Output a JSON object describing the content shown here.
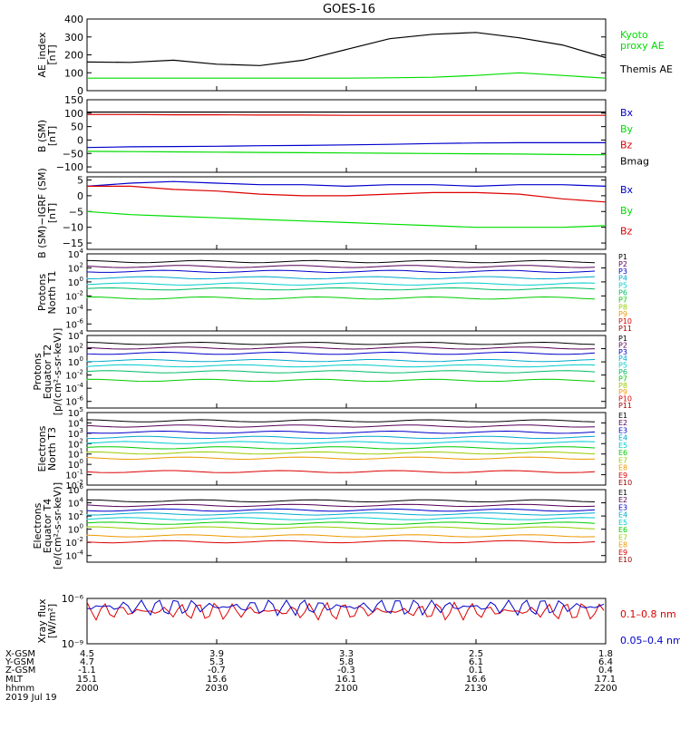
{
  "title": "GOES-16",
  "colors": {
    "axes": "#000000",
    "black": "#000000",
    "green": "#00dd00",
    "blue": "#0000cc",
    "red": "#dd0000",
    "darkred": "#990000"
  },
  "chart_data": [
    {
      "type": "line",
      "panel": "ae",
      "ylabel": [
        "AE_index",
        "[nT]"
      ],
      "ylim": [
        0,
        400
      ],
      "yticks": [
        0,
        100,
        200,
        300,
        400
      ],
      "ytick_labels": [
        "0",
        "100",
        "200",
        "300",
        "400"
      ],
      "x": [
        0,
        10,
        20,
        30,
        40,
        50,
        60,
        70,
        80,
        90,
        100,
        110,
        120
      ],
      "series": [
        {
          "name": "Kyoto proxy AE",
          "color": "#00dd00",
          "values": [
            70,
            70,
            70,
            70,
            70,
            70,
            70,
            72,
            75,
            85,
            100,
            85,
            70
          ]
        },
        {
          "name": "Themis AE",
          "color": "#000000",
          "values": [
            160,
            158,
            170,
            148,
            140,
            170,
            230,
            290,
            315,
            325,
            295,
            255,
            185
          ]
        }
      ],
      "legend": [
        "Kyoto",
        "proxy AE",
        "Themis AE"
      ]
    },
    {
      "type": "line",
      "panel": "bsm",
      "ylabel": [
        "B (SM)",
        "[nT]"
      ],
      "ylim": [
        -120,
        150
      ],
      "yticks": [
        -100,
        -50,
        0,
        50,
        100,
        150
      ],
      "ytick_labels": [
        "−100",
        "−50",
        "0",
        "50",
        "100",
        "150"
      ],
      "x": [
        0,
        10,
        20,
        30,
        40,
        50,
        60,
        70,
        80,
        90,
        100,
        110,
        120
      ],
      "series": [
        {
          "name": "Bx",
          "color": "#0000cc",
          "values": [
            -28,
            -25,
            -24,
            -23,
            -21,
            -20,
            -18,
            -16,
            -13,
            -11,
            -10,
            -10,
            -10
          ]
        },
        {
          "name": "By",
          "color": "#00dd00",
          "values": [
            -42,
            -43,
            -44,
            -45,
            -46,
            -47,
            -48,
            -49,
            -50,
            -51,
            -52,
            -54,
            -55
          ]
        },
        {
          "name": "Bz",
          "color": "#dd0000",
          "values": [
            95,
            95,
            94,
            94,
            93,
            93,
            92,
            92,
            92,
            92,
            92,
            92,
            92
          ]
        },
        {
          "name": "Bmag",
          "color": "#000000",
          "values": [
            104,
            104,
            104,
            104,
            104,
            104,
            104,
            104,
            104,
            104,
            104,
            104,
            104
          ]
        }
      ],
      "legend": [
        "Bx",
        "By",
        "Bz",
        "Bmag"
      ]
    },
    {
      "type": "line",
      "panel": "bigrf",
      "ylabel": [
        "B (SM)−IGRF (SM)",
        "[nT]"
      ],
      "ylim": [
        -17,
        6
      ],
      "yticks": [
        -15,
        -10,
        -5,
        0,
        5
      ],
      "ytick_labels": [
        "−15",
        "−10",
        "−5",
        "0",
        "5"
      ],
      "x": [
        0,
        10,
        20,
        30,
        40,
        50,
        60,
        70,
        80,
        90,
        100,
        110,
        120
      ],
      "series": [
        {
          "name": "Bx",
          "color": "#0000cc",
          "values": [
            3,
            4,
            4.5,
            4,
            3.5,
            3.5,
            3,
            3.5,
            3.5,
            3,
            3.5,
            3.5,
            3
          ]
        },
        {
          "name": "By",
          "color": "#00dd00",
          "values": [
            -5,
            -6,
            -6.5,
            -7,
            -7.5,
            -8,
            -8.5,
            -9,
            -9.5,
            -10,
            -10,
            -10,
            -9.5
          ]
        },
        {
          "name": "Bz",
          "color": "#dd0000",
          "values": [
            3,
            3,
            2,
            1.5,
            0.5,
            0,
            0,
            0.5,
            1,
            1,
            0.5,
            -1,
            -2
          ]
        }
      ],
      "legend": [
        "Bx",
        "By",
        "Bz"
      ]
    },
    {
      "type": "line",
      "panel": "protons_t1",
      "ylabel": [
        "Protons",
        "North T1"
      ],
      "ylim_log10": [
        -7,
        4
      ],
      "yticks_log10": [
        4,
        2,
        0,
        -2,
        -4,
        -6
      ],
      "ytick_labels": [
        "4",
        "2",
        "0",
        "-2",
        "-4",
        "-6"
      ],
      "channels": [
        "P1",
        "P2",
        "P3",
        "P4",
        "P5",
        "P6",
        "P7",
        "P8",
        "P9",
        "P10",
        "P11"
      ],
      "channel_colors": [
        "#000000",
        "#550055",
        "#0000cc",
        "#00aacc",
        "#00cccc",
        "#00bb66",
        "#00cc00",
        "#99cc00",
        "#ee9900",
        "#dd0000",
        "#aa0000"
      ],
      "series_log10": [
        {
          "name": "P1",
          "level": 2.9
        },
        {
          "name": "P2",
          "level": 2.2
        },
        {
          "name": "P3",
          "level": 1.5
        },
        {
          "name": "P4",
          "level": 0.6
        },
        {
          "name": "P5",
          "level": -0.3
        },
        {
          "name": "P6",
          "level": -1.0
        },
        {
          "name": "P7",
          "level": -2.3
        }
      ]
    },
    {
      "type": "line",
      "panel": "protons_t2",
      "ylabel": [
        "Protons",
        "Equator T2",
        "[p/(cm²-s-sr-keV)]"
      ],
      "ylim_log10": [
        -7,
        4
      ],
      "yticks_log10": [
        4,
        2,
        0,
        -2,
        -4,
        -6
      ],
      "ytick_labels": [
        "4",
        "2",
        "0",
        "-2",
        "-4",
        "-6"
      ],
      "channels": [
        "P1",
        "P2",
        "P3",
        "P4",
        "P5",
        "P6",
        "P7",
        "P8",
        "P9",
        "P10",
        "P11"
      ],
      "series_log10": [
        {
          "name": "P1",
          "level": 2.8
        },
        {
          "name": "P2",
          "level": 2.1
        },
        {
          "name": "P3",
          "level": 1.3
        },
        {
          "name": "P4",
          "level": 0.2
        },
        {
          "name": "P5",
          "level": -0.6
        },
        {
          "name": "P6",
          "level": -1.5
        },
        {
          "name": "P7",
          "level": -2.8
        }
      ]
    },
    {
      "type": "line",
      "panel": "electrons_t3",
      "ylabel": [
        "Electrons",
        "North T3"
      ],
      "ylim_log10": [
        -2,
        5
      ],
      "yticks_log10": [
        5,
        4,
        3,
        2,
        1,
        0,
        -1,
        -2
      ],
      "ytick_labels": [
        "5",
        "4",
        "3",
        "2",
        "1",
        "0",
        "-1",
        "-2"
      ],
      "channels": [
        "E1",
        "E2",
        "E3",
        "E4",
        "E5",
        "E6",
        "E7",
        "E8",
        "E9",
        "E10"
      ],
      "channel_colors": [
        "#000000",
        "#550055",
        "#0000cc",
        "#00aacc",
        "#00cccc",
        "#00cc00",
        "#99cc00",
        "#ee9900",
        "#dd0000",
        "#990000"
      ],
      "series_log10": [
        {
          "name": "E1",
          "level": 4.2
        },
        {
          "name": "E2",
          "level": 3.7
        },
        {
          "name": "E3",
          "level": 3.1
        },
        {
          "name": "E4",
          "level": 2.6
        },
        {
          "name": "E5",
          "level": 2.1
        },
        {
          "name": "E6",
          "level": 1.6
        },
        {
          "name": "E7",
          "level": 1.1
        },
        {
          "name": "E8",
          "level": 0.6
        },
        {
          "name": "E9",
          "level": -0.7
        }
      ]
    },
    {
      "type": "line",
      "panel": "electrons_t4",
      "ylabel": [
        "Electrons",
        "Equator T4",
        "[e/(cm²-s-sr-keV)]"
      ],
      "ylim_log10": [
        -5,
        6
      ],
      "yticks_log10": [
        6,
        4,
        2,
        0,
        -2,
        -4
      ],
      "ytick_labels": [
        "6",
        "4",
        "2",
        "0",
        "-2",
        "-4"
      ],
      "channels": [
        "E1",
        "E2",
        "E3",
        "E4",
        "E5",
        "E6",
        "E7",
        "E8",
        "E9",
        "E10"
      ],
      "series_log10": [
        {
          "name": "E1",
          "level": 4.3
        },
        {
          "name": "E2",
          "level": 3.6
        },
        {
          "name": "E3",
          "level": 2.9
        },
        {
          "name": "E4",
          "level": 2.3
        },
        {
          "name": "E5",
          "level": 1.6
        },
        {
          "name": "E6",
          "level": 0.9
        },
        {
          "name": "E7",
          "level": 0.2
        },
        {
          "name": "E8",
          "level": -1.0
        },
        {
          "name": "E9",
          "level": -1.9
        }
      ]
    },
    {
      "type": "line",
      "panel": "xray",
      "ylabel": [
        "Xray flux",
        "[W/m²]"
      ],
      "ylim_log10": [
        -9,
        -6
      ],
      "yticks_log10": [
        -6,
        -9
      ],
      "ytick_labels": [
        "10⁻⁶",
        "10⁻⁹"
      ],
      "series": [
        {
          "name": "0.1–0.8 nm",
          "color": "#dd0000",
          "level_log10": -6.85
        },
        {
          "name": "0.05–0.4 nm",
          "color": "#0000cc",
          "level_log10": -6.55
        }
      ],
      "legend": [
        "0.1–0.8 nm",
        "0.05–0.4 nm"
      ]
    }
  ],
  "footer": {
    "row_labels": [
      "X-GSM",
      "Y-GSM",
      "Z-GSM",
      "MLT",
      "hhmm",
      "2019 Jul 19"
    ],
    "columns": [
      [
        "4.5",
        "4.7",
        "-1.1",
        "15.1",
        "2000"
      ],
      [
        "3.9",
        "5.3",
        "-0.7",
        "15.6",
        "2030"
      ],
      [
        "3.3",
        "5.8",
        "-0.3",
        "16.1",
        "2100"
      ],
      [
        "2.5",
        "6.1",
        "0.1",
        "16.6",
        "2130"
      ],
      [
        "1.8",
        "6.4",
        "0.4",
        "17.1",
        "2200"
      ]
    ]
  }
}
